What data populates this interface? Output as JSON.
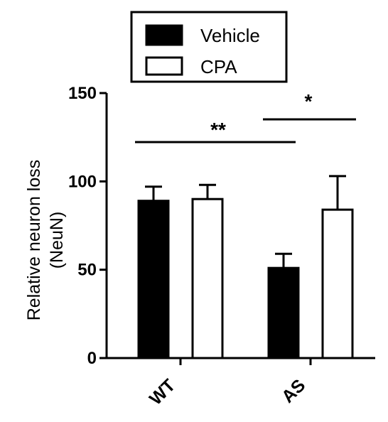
{
  "chart_data": {
    "type": "bar",
    "categories": [
      "WT",
      "AS"
    ],
    "series": [
      {
        "name": "Vehicle",
        "values": [
          89,
          51
        ],
        "errors": [
          8,
          8
        ],
        "color": "#000000",
        "fill": "#000000"
      },
      {
        "name": "CPA",
        "values": [
          90,
          84
        ],
        "errors": [
          8,
          19
        ],
        "color": "#000000",
        "fill": "#ffffff"
      }
    ],
    "ylabel_lines": [
      "Relative neuron loss",
      "(NeuN)"
    ],
    "xlabel": "",
    "ylim": [
      0,
      150
    ],
    "yticks": [
      0,
      50,
      100,
      150
    ],
    "ytick_labels": [
      "0",
      "50",
      "100",
      "150"
    ],
    "legend_placement": "top",
    "significance": [
      {
        "label": "**",
        "from": "WT Vehicle",
        "to": "AS Vehicle"
      },
      {
        "label": "*",
        "from": "AS Vehicle",
        "to": "AS CPA"
      }
    ]
  }
}
